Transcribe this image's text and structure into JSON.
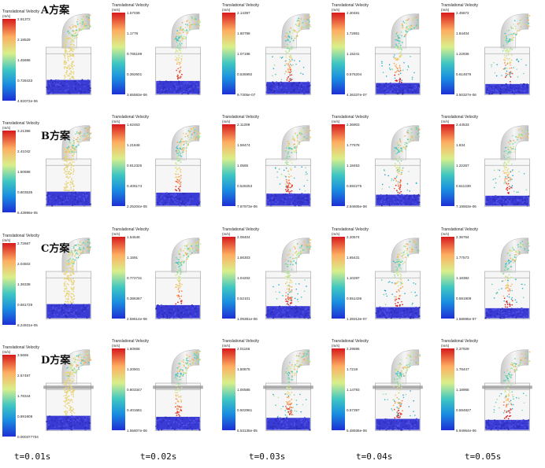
{
  "legend_title": "Translational Velocity",
  "legend_unit": "(m/s)",
  "rows": [
    {
      "scheme": "A方案",
      "cells": [
        {
          "ticks": [
            "2.91372",
            "2.18529",
            "1.45686",
            "0.728433",
            "4.92072e-06"
          ]
        },
        {
          "ticks": [
            "1.57039",
            "1.1778",
            "0.785199",
            "0.392601",
            "3.65583e-06"
          ]
        },
        {
          "ticks": [
            "2.14397",
            "1.60798",
            "1.07198",
            "0.535992",
            "9.7305e-07"
          ]
        },
        {
          "ticks": [
            "2.30481",
            "1.72861",
            "1.15241",
            "0.576204",
            "4.36337e-07"
          ]
        },
        {
          "ticks": [
            "2.45872",
            "1.84404",
            "1.22936",
            "0.614679",
            "3.50327e-06"
          ]
        }
      ]
    },
    {
      "scheme": "B方案",
      "cells": [
        {
          "ticks": [
            "3.21386",
            "2.41042",
            "1.60698",
            "0.803535",
            "6.43996e-05"
          ]
        },
        {
          "ticks": [
            "1.62463",
            "1.21848",
            "0.812325",
            "0.406174",
            "2.25204e-05"
          ]
        },
        {
          "ticks": [
            "2.11299",
            "1.58474",
            "1.0565",
            "0.528253",
            "7.87973e-06"
          ]
        },
        {
          "ticks": [
            "2.36903",
            "1.77678",
            "1.18453",
            "0.592275",
            "2.94605e-06"
          ]
        },
        {
          "ticks": [
            "2.44533",
            "1.834",
            "1.22267",
            "0.611339",
            "7.19563e-06"
          ]
        }
      ]
    },
    {
      "scheme": "C方案",
      "cells": [
        {
          "ticks": [
            "2.72667",
            "2.04502",
            "1.36338",
            "0.681729",
            "8.24931e-05"
          ]
        },
        {
          "ticks": [
            "1.54546",
            "1.1591",
            "0.772731",
            "0.386367",
            "2.59614e-06"
          ]
        },
        {
          "ticks": [
            "2.08404",
            "1.56303",
            "1.04202",
            "0.52101",
            "1.09381e-06"
          ]
        },
        {
          "ticks": [
            "2.20574",
            "1.65431",
            "1.10287",
            "0.551436",
            "1.39313e-07"
          ]
        },
        {
          "ticks": [
            "2.36764",
            "1.77573",
            "1.18382",
            "0.591909",
            "1.58695e-07"
          ]
        }
      ]
    },
    {
      "scheme": "D方案",
      "cells": [
        {
          "ticks": [
            "3.5665",
            "2.67497",
            "1.78344",
            "0.891908",
            "0.000377704"
          ]
        },
        {
          "ticks": [
            "1.60668",
            "1.20501",
            "0.803347",
            "0.401681",
            "1.55607e-06"
          ]
        },
        {
          "ticks": [
            "2.01166",
            "1.50875",
            "1.00585",
            "0.502961",
            "5.53135e-05"
          ]
        },
        {
          "ticks": [
            "2.29586",
            "1.7219",
            "1.14793",
            "0.57397",
            "5.48936e-06"
          ]
        },
        {
          "ticks": [
            "2.37929",
            "1.78447",
            "1.18965",
            "0.594827",
            "5.94964e-06"
          ]
        }
      ]
    }
  ],
  "time_labels": [
    "t=0.01s",
    "t=0.02s",
    "t=0.03s",
    "t=0.04s",
    "t=0.05s"
  ]
}
